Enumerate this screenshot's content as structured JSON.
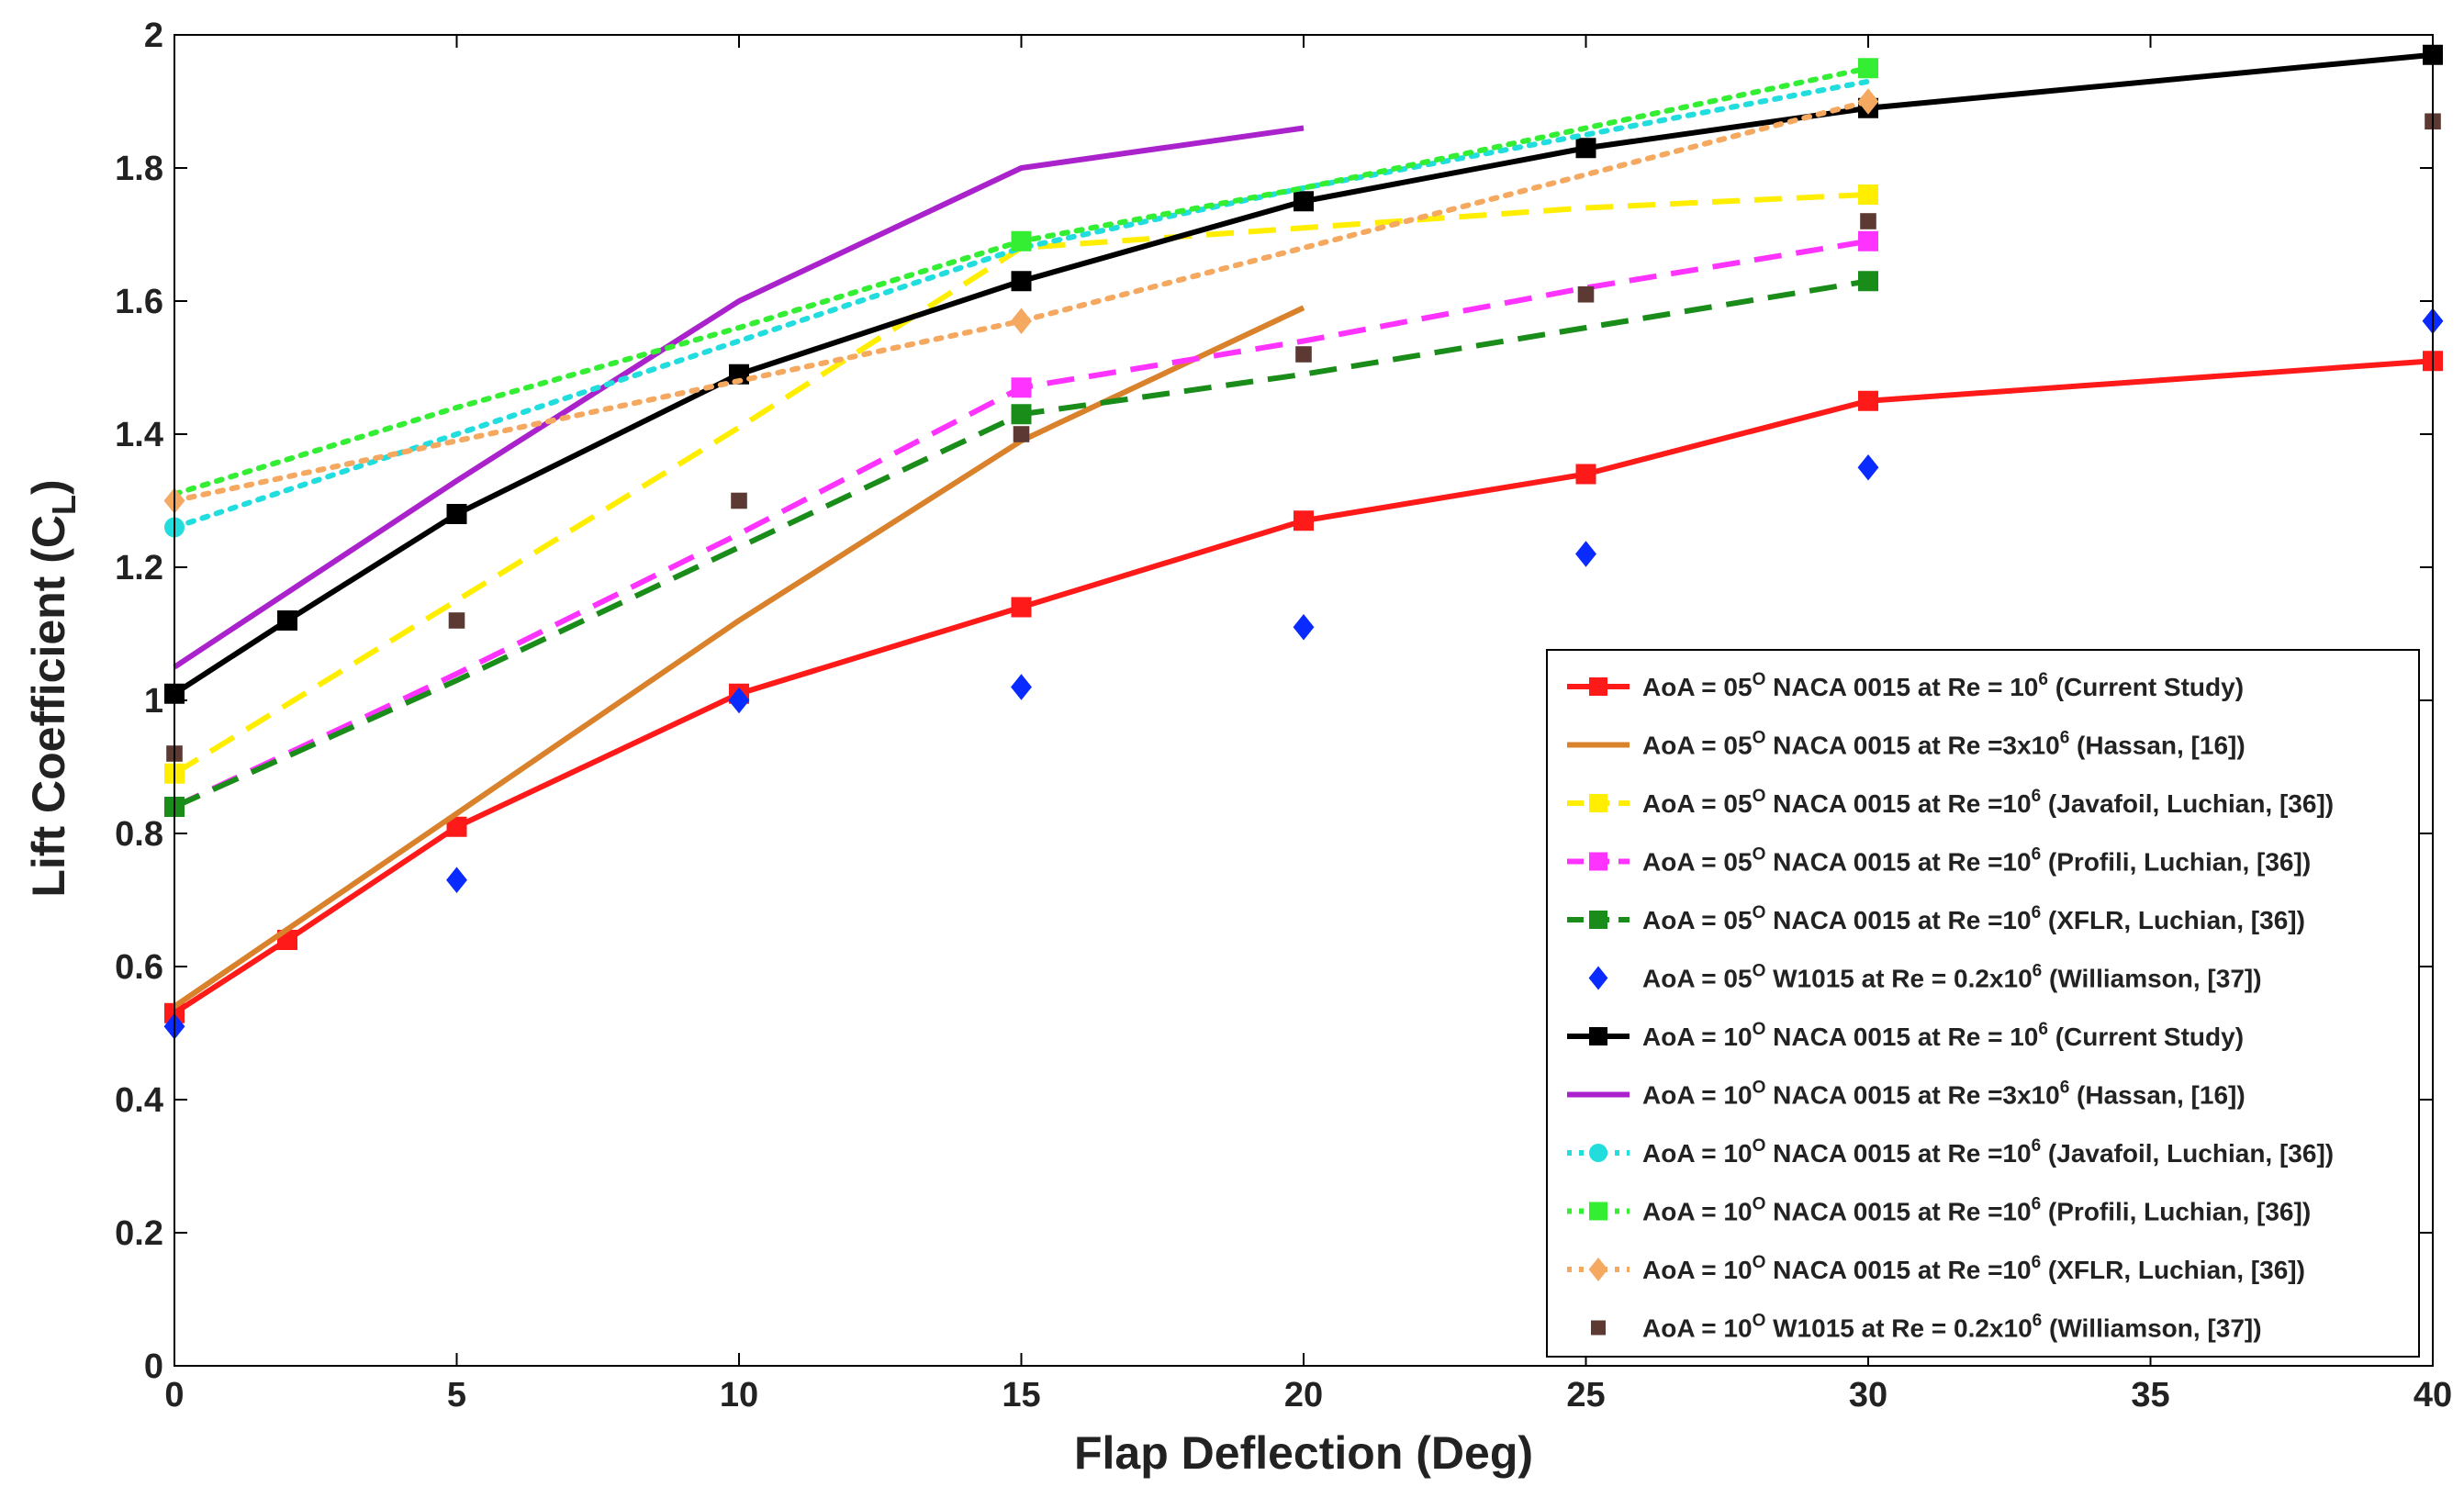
{
  "chart_data": {
    "type": "line",
    "xlabel": "Flap Deflection (Deg)",
    "ylabel": "Lift Coefficient (C",
    "ylabel_sub": "L",
    "ylabel_close": ")",
    "xlim": [
      0,
      40
    ],
    "ylim": [
      0,
      2
    ],
    "xticks": [
      0,
      5,
      10,
      15,
      20,
      25,
      30,
      35,
      40
    ],
    "yticks": [
      0,
      0.2,
      0.4,
      0.6,
      0.8,
      1,
      1.2,
      1.4,
      1.6,
      1.8,
      2
    ],
    "xtick_labels": [
      "0",
      "5",
      "10",
      "15",
      "20",
      "25",
      "30",
      "35",
      "40"
    ],
    "ytick_labels": [
      "0",
      "0.2",
      "0.4",
      "0.6",
      "0.8",
      "1",
      "1.2",
      "1.4",
      "1.6",
      "1.8",
      "2"
    ],
    "grid": false,
    "legend_position": "bottom-right",
    "series": [
      {
        "name": "AoA = 05° NACA 0015 at Re = 10⁶ (Current Study)",
        "color": "#ff1a1a",
        "dash": "solid",
        "marker": "square",
        "markers_on_points": true,
        "x": [
          0,
          2,
          5,
          10,
          15,
          20,
          25,
          30,
          40
        ],
        "y": [
          0.53,
          0.64,
          0.81,
          1.01,
          1.14,
          1.27,
          1.34,
          1.45,
          1.51
        ]
      },
      {
        "name": "AoA = 05° NACA 0015 at Re =3x10⁶ (Hassan, [16])",
        "color": "#d9822b",
        "dash": "solid",
        "marker": "none",
        "markers_on_points": false,
        "x": [
          0,
          5,
          10,
          15,
          20
        ],
        "y": [
          0.54,
          0.83,
          1.12,
          1.39,
          1.59
        ]
      },
      {
        "name": "AoA = 05° NACA 0015 at Re =10⁶ (Javafoil, Luchian, [36])",
        "color": "#ffee00",
        "dash": "dashed",
        "marker": "square",
        "markers_on_points": false,
        "marker_indices": [
          0,
          6
        ],
        "x": [
          0,
          5,
          10,
          15,
          20,
          25,
          30
        ],
        "y": [
          0.89,
          1.15,
          1.41,
          1.68,
          1.71,
          1.74,
          1.76
        ]
      },
      {
        "name": "AoA = 05° NACA 0015 at Re =10⁶ (Profili, Luchian, [36])",
        "color": "#ff33ff",
        "dash": "dashed",
        "marker": "square",
        "markers_on_points": false,
        "marker_indices": [
          3,
          6
        ],
        "x": [
          0,
          5,
          10,
          15,
          20,
          25,
          30
        ],
        "y": [
          0.84,
          1.04,
          1.25,
          1.47,
          1.54,
          1.62,
          1.69
        ]
      },
      {
        "name": "AoA = 05° NACA 0015 at Re =10⁶ (XFLR, Luchian, [36])",
        "color": "#1a8c1a",
        "dash": "dashed",
        "marker": "square",
        "markers_on_points": false,
        "marker_indices": [
          0,
          3,
          6
        ],
        "x": [
          0,
          5,
          10,
          15,
          20,
          25,
          30
        ],
        "y": [
          0.84,
          1.03,
          1.23,
          1.43,
          1.49,
          1.56,
          1.63
        ]
      },
      {
        "name": "AoA = 05° W1015 at Re = 0.2x10⁶ (Williamson, [37])",
        "color": "#0a2bff",
        "dash": "none",
        "marker": "diamond",
        "markers_on_points": true,
        "x": [
          0,
          5,
          10,
          15,
          20,
          25,
          30,
          40
        ],
        "y": [
          0.51,
          0.73,
          1.0,
          1.02,
          1.11,
          1.22,
          1.35,
          1.57
        ]
      },
      {
        "name": "AoA = 10° NACA 0015 at Re = 10⁶ (Current Study)",
        "color": "#000000",
        "dash": "solid",
        "marker": "square",
        "markers_on_points": true,
        "x": [
          0,
          2,
          5,
          10,
          15,
          20,
          25,
          30,
          40
        ],
        "y": [
          1.01,
          1.12,
          1.28,
          1.49,
          1.63,
          1.75,
          1.83,
          1.89,
          1.97
        ]
      },
      {
        "name": "AoA = 10° NACA 0015 at Re =3x10⁶ (Hassan, [16])",
        "color": "#aa22cc",
        "dash": "solid",
        "marker": "none",
        "markers_on_points": false,
        "x": [
          0,
          5,
          10,
          15,
          20
        ],
        "y": [
          1.05,
          1.33,
          1.6,
          1.8,
          1.86
        ]
      },
      {
        "name": "AoA = 10° NACA 0015 at Re =10⁶ (Javafoil, Luchian, [36])",
        "color": "#22dddd",
        "dash": "dotted",
        "marker": "circle",
        "markers_on_points": false,
        "marker_indices": [
          0
        ],
        "x": [
          0,
          5,
          10,
          15,
          20,
          25,
          30
        ],
        "y": [
          1.26,
          1.4,
          1.54,
          1.68,
          1.77,
          1.85,
          1.93
        ]
      },
      {
        "name": "AoA = 10° NACA 0015 at Re =10⁶ (Profili, Luchian, [36])",
        "color": "#33ee33",
        "dash": "dotted",
        "marker": "square",
        "markers_on_points": false,
        "marker_indices": [
          3,
          6
        ],
        "x": [
          0,
          5,
          10,
          15,
          20,
          25,
          30
        ],
        "y": [
          1.31,
          1.44,
          1.56,
          1.69,
          1.77,
          1.86,
          1.95
        ]
      },
      {
        "name": "AoA = 10° NACA 0015 at Re =10⁶ (XFLR, Luchian, [36])",
        "color": "#f5a860",
        "dash": "dotted",
        "marker": "diamond",
        "markers_on_points": false,
        "marker_indices": [
          0,
          3,
          6
        ],
        "x": [
          0,
          5,
          10,
          15,
          20,
          25,
          30
        ],
        "y": [
          1.3,
          1.39,
          1.48,
          1.57,
          1.68,
          1.79,
          1.9
        ]
      },
      {
        "name": "AoA = 10° W1015 at Re = 0.2x10⁶ (Williamson, [37])",
        "color": "#5c3a33",
        "dash": "none",
        "marker": "square-small",
        "markers_on_points": true,
        "x": [
          0,
          5,
          10,
          15,
          20,
          25,
          30,
          40
        ],
        "y": [
          0.92,
          1.12,
          1.3,
          1.4,
          1.52,
          1.61,
          1.72,
          1.87
        ]
      }
    ],
    "legend": [
      {
        "prefix": "AoA = 05",
        "sup1": "O",
        "mid": " NACA 0015 at Re = 10",
        "sup2": "6",
        "suffix": " (Current Study)"
      },
      {
        "prefix": "AoA = 05",
        "sup1": "O",
        "mid": " NACA 0015 at Re =3x10",
        "sup2": "6",
        "suffix": " (Hassan, [16])"
      },
      {
        "prefix": "AoA = 05",
        "sup1": "O",
        "mid": " NACA 0015 at Re =10",
        "sup2": "6",
        "suffix": " (Javafoil, Luchian, [36])"
      },
      {
        "prefix": "AoA = 05",
        "sup1": "O",
        "mid": " NACA 0015 at Re =10",
        "sup2": "6",
        "suffix": " (Profili, Luchian, [36])"
      },
      {
        "prefix": "AoA = 05",
        "sup1": "O",
        "mid": " NACA 0015 at Re =10",
        "sup2": "6",
        "suffix": " (XFLR, Luchian, [36])"
      },
      {
        "prefix": "AoA = 05",
        "sup1": "O",
        "mid": " W1015 at Re = 0.2x10",
        "sup2": "6",
        "suffix": " (Williamson, [37])"
      },
      {
        "prefix": "AoA = 10",
        "sup1": "O",
        "mid": " NACA 0015 at Re = 10",
        "sup2": "6",
        "suffix": " (Current Study)"
      },
      {
        "prefix": "AoA = 10",
        "sup1": "O",
        "mid": " NACA 0015 at Re =3x10",
        "sup2": "6",
        "suffix": " (Hassan, [16])"
      },
      {
        "prefix": "AoA = 10",
        "sup1": "O",
        "mid": " NACA 0015 at Re =10",
        "sup2": "6",
        "suffix": " (Javafoil, Luchian, [36])"
      },
      {
        "prefix": "AoA = 10",
        "sup1": "O",
        "mid": " NACA 0015 at Re =10",
        "sup2": "6",
        "suffix": " (Profili, Luchian, [36])"
      },
      {
        "prefix": "AoA = 10",
        "sup1": "O",
        "mid": " NACA 0015 at Re =10",
        "sup2": "6",
        "suffix": " (XFLR, Luchian, [36])"
      },
      {
        "prefix": "AoA = 10",
        "sup1": "O",
        "mid": " W1015 at Re = 0.2x10",
        "sup2": "6",
        "suffix": " (Williamson, [37])"
      }
    ]
  }
}
